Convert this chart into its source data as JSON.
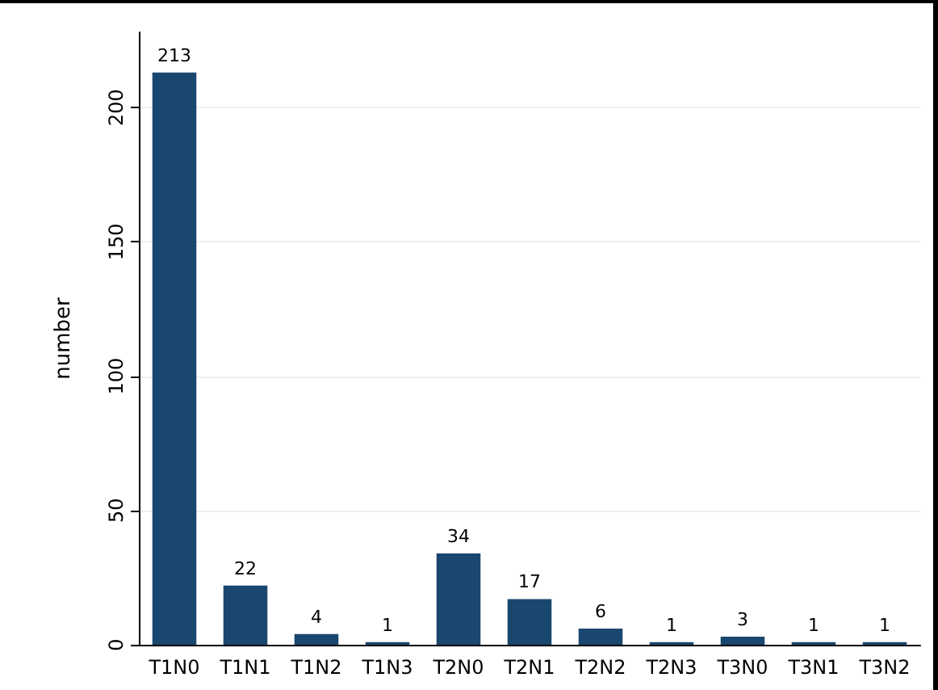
{
  "chart_data": {
    "type": "bar",
    "ylabel": "number",
    "categories": [
      "T1N0",
      "T1N1",
      "T1N2",
      "T1N3",
      "T2N0",
      "T2N1",
      "T2N2",
      "T2N3",
      "T3N0",
      "T3N1",
      "T3N2"
    ],
    "values": [
      213,
      22,
      4,
      1,
      34,
      17,
      6,
      1,
      3,
      1,
      1
    ],
    "color": "#1a476f",
    "ylim": [
      0,
      228
    ],
    "yticks": [
      0,
      50,
      100,
      150,
      200
    ],
    "grid": "y",
    "data_labels": true
  }
}
